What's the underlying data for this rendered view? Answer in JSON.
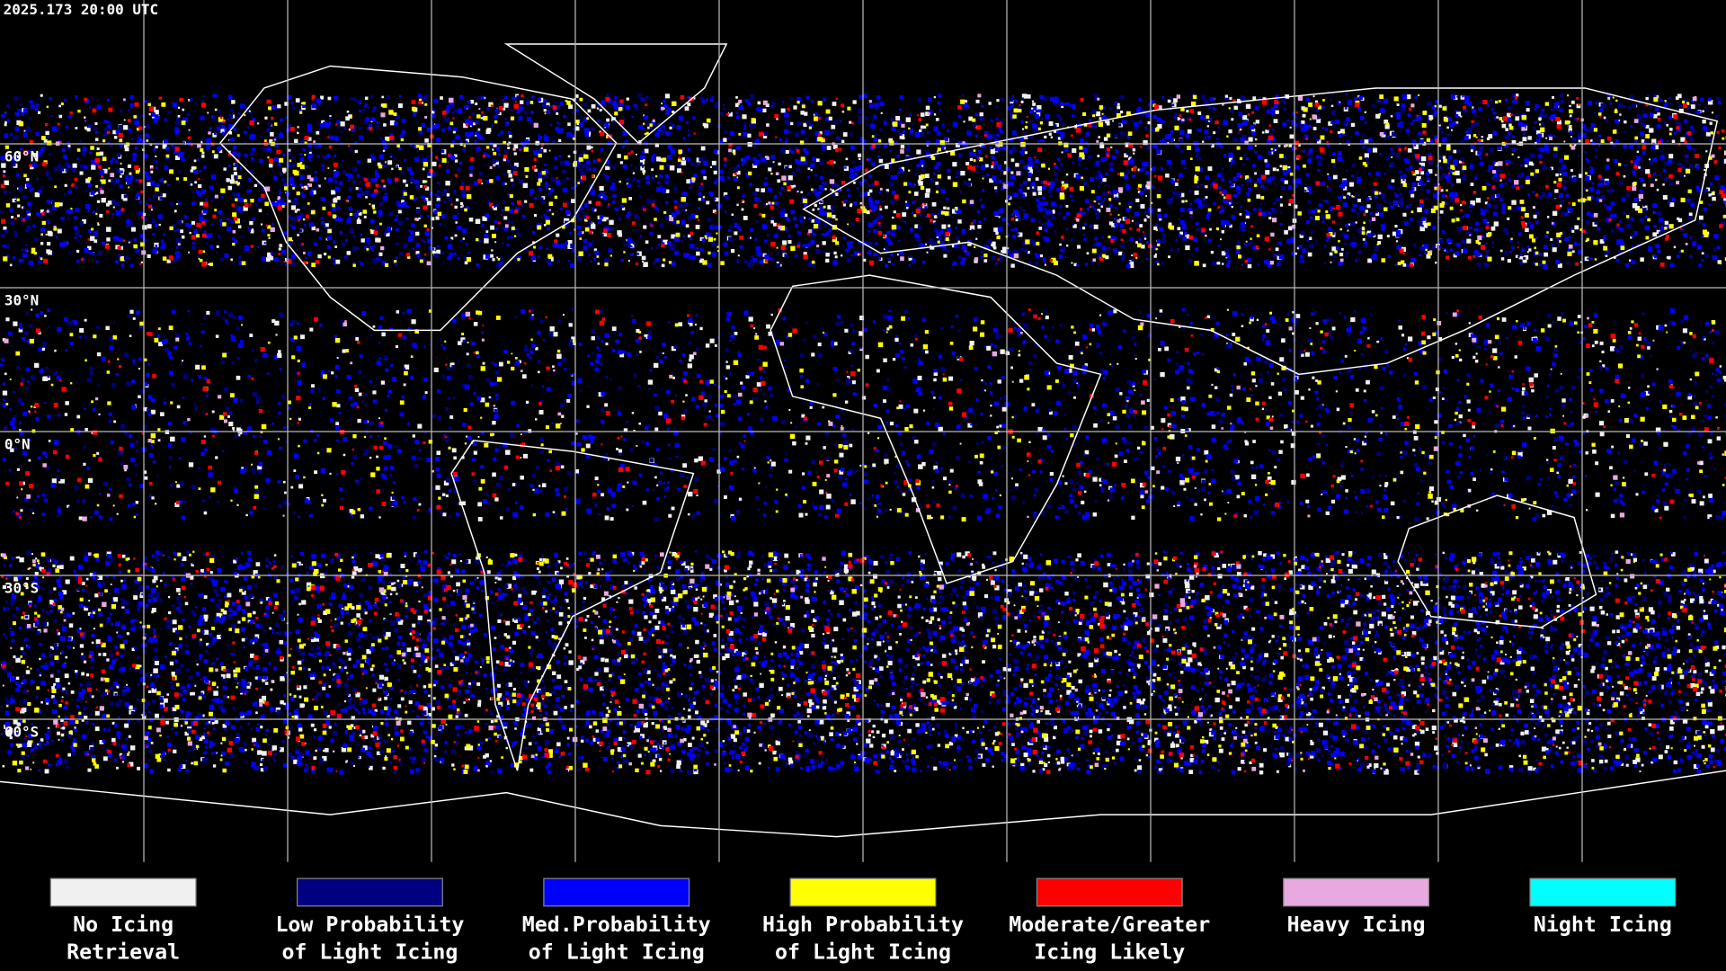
{
  "timestamp": "2025.173 20:00 UTC",
  "latitude_labels": [
    "60°N",
    "30°N",
    "0°N",
    "30°S",
    "60°S"
  ],
  "legend": {
    "items": [
      {
        "color": "#f0f0f0",
        "lines": [
          "No Icing",
          "Retrieval"
        ]
      },
      {
        "color": "#000080",
        "lines": [
          "Low Probability",
          "of Light Icing"
        ]
      },
      {
        "color": "#0000ff",
        "lines": [
          "Med.Probability",
          "of Light Icing"
        ]
      },
      {
        "color": "#ffff00",
        "lines": [
          "High Probability",
          "of Light Icing"
        ]
      },
      {
        "color": "#ff0000",
        "lines": [
          "Moderate/Greater",
          "Icing Likely"
        ]
      },
      {
        "color": "#e8a8e0",
        "lines": [
          "Heavy Icing"
        ]
      },
      {
        "color": "#00ffff",
        "lines": [
          "Night Icing"
        ]
      }
    ]
  }
}
